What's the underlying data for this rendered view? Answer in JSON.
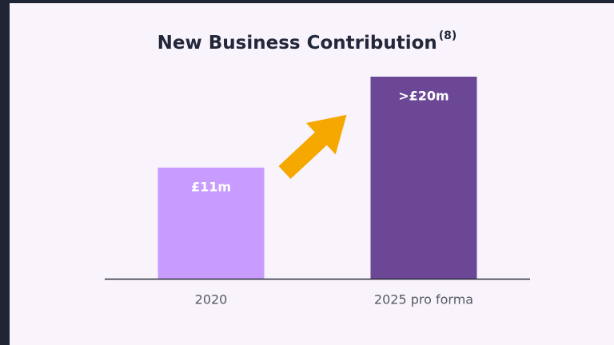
{
  "chart_data": {
    "type": "bar",
    "title": "New Business Contribution",
    "title_superscript": "(8)",
    "categories": [
      "2020",
      "2025 pro forma"
    ],
    "values": [
      11,
      20
    ],
    "value_labels": [
      "£11m",
      ">£20m"
    ],
    "colors": [
      "#c89cff",
      "#6b4796"
    ]
  }
}
